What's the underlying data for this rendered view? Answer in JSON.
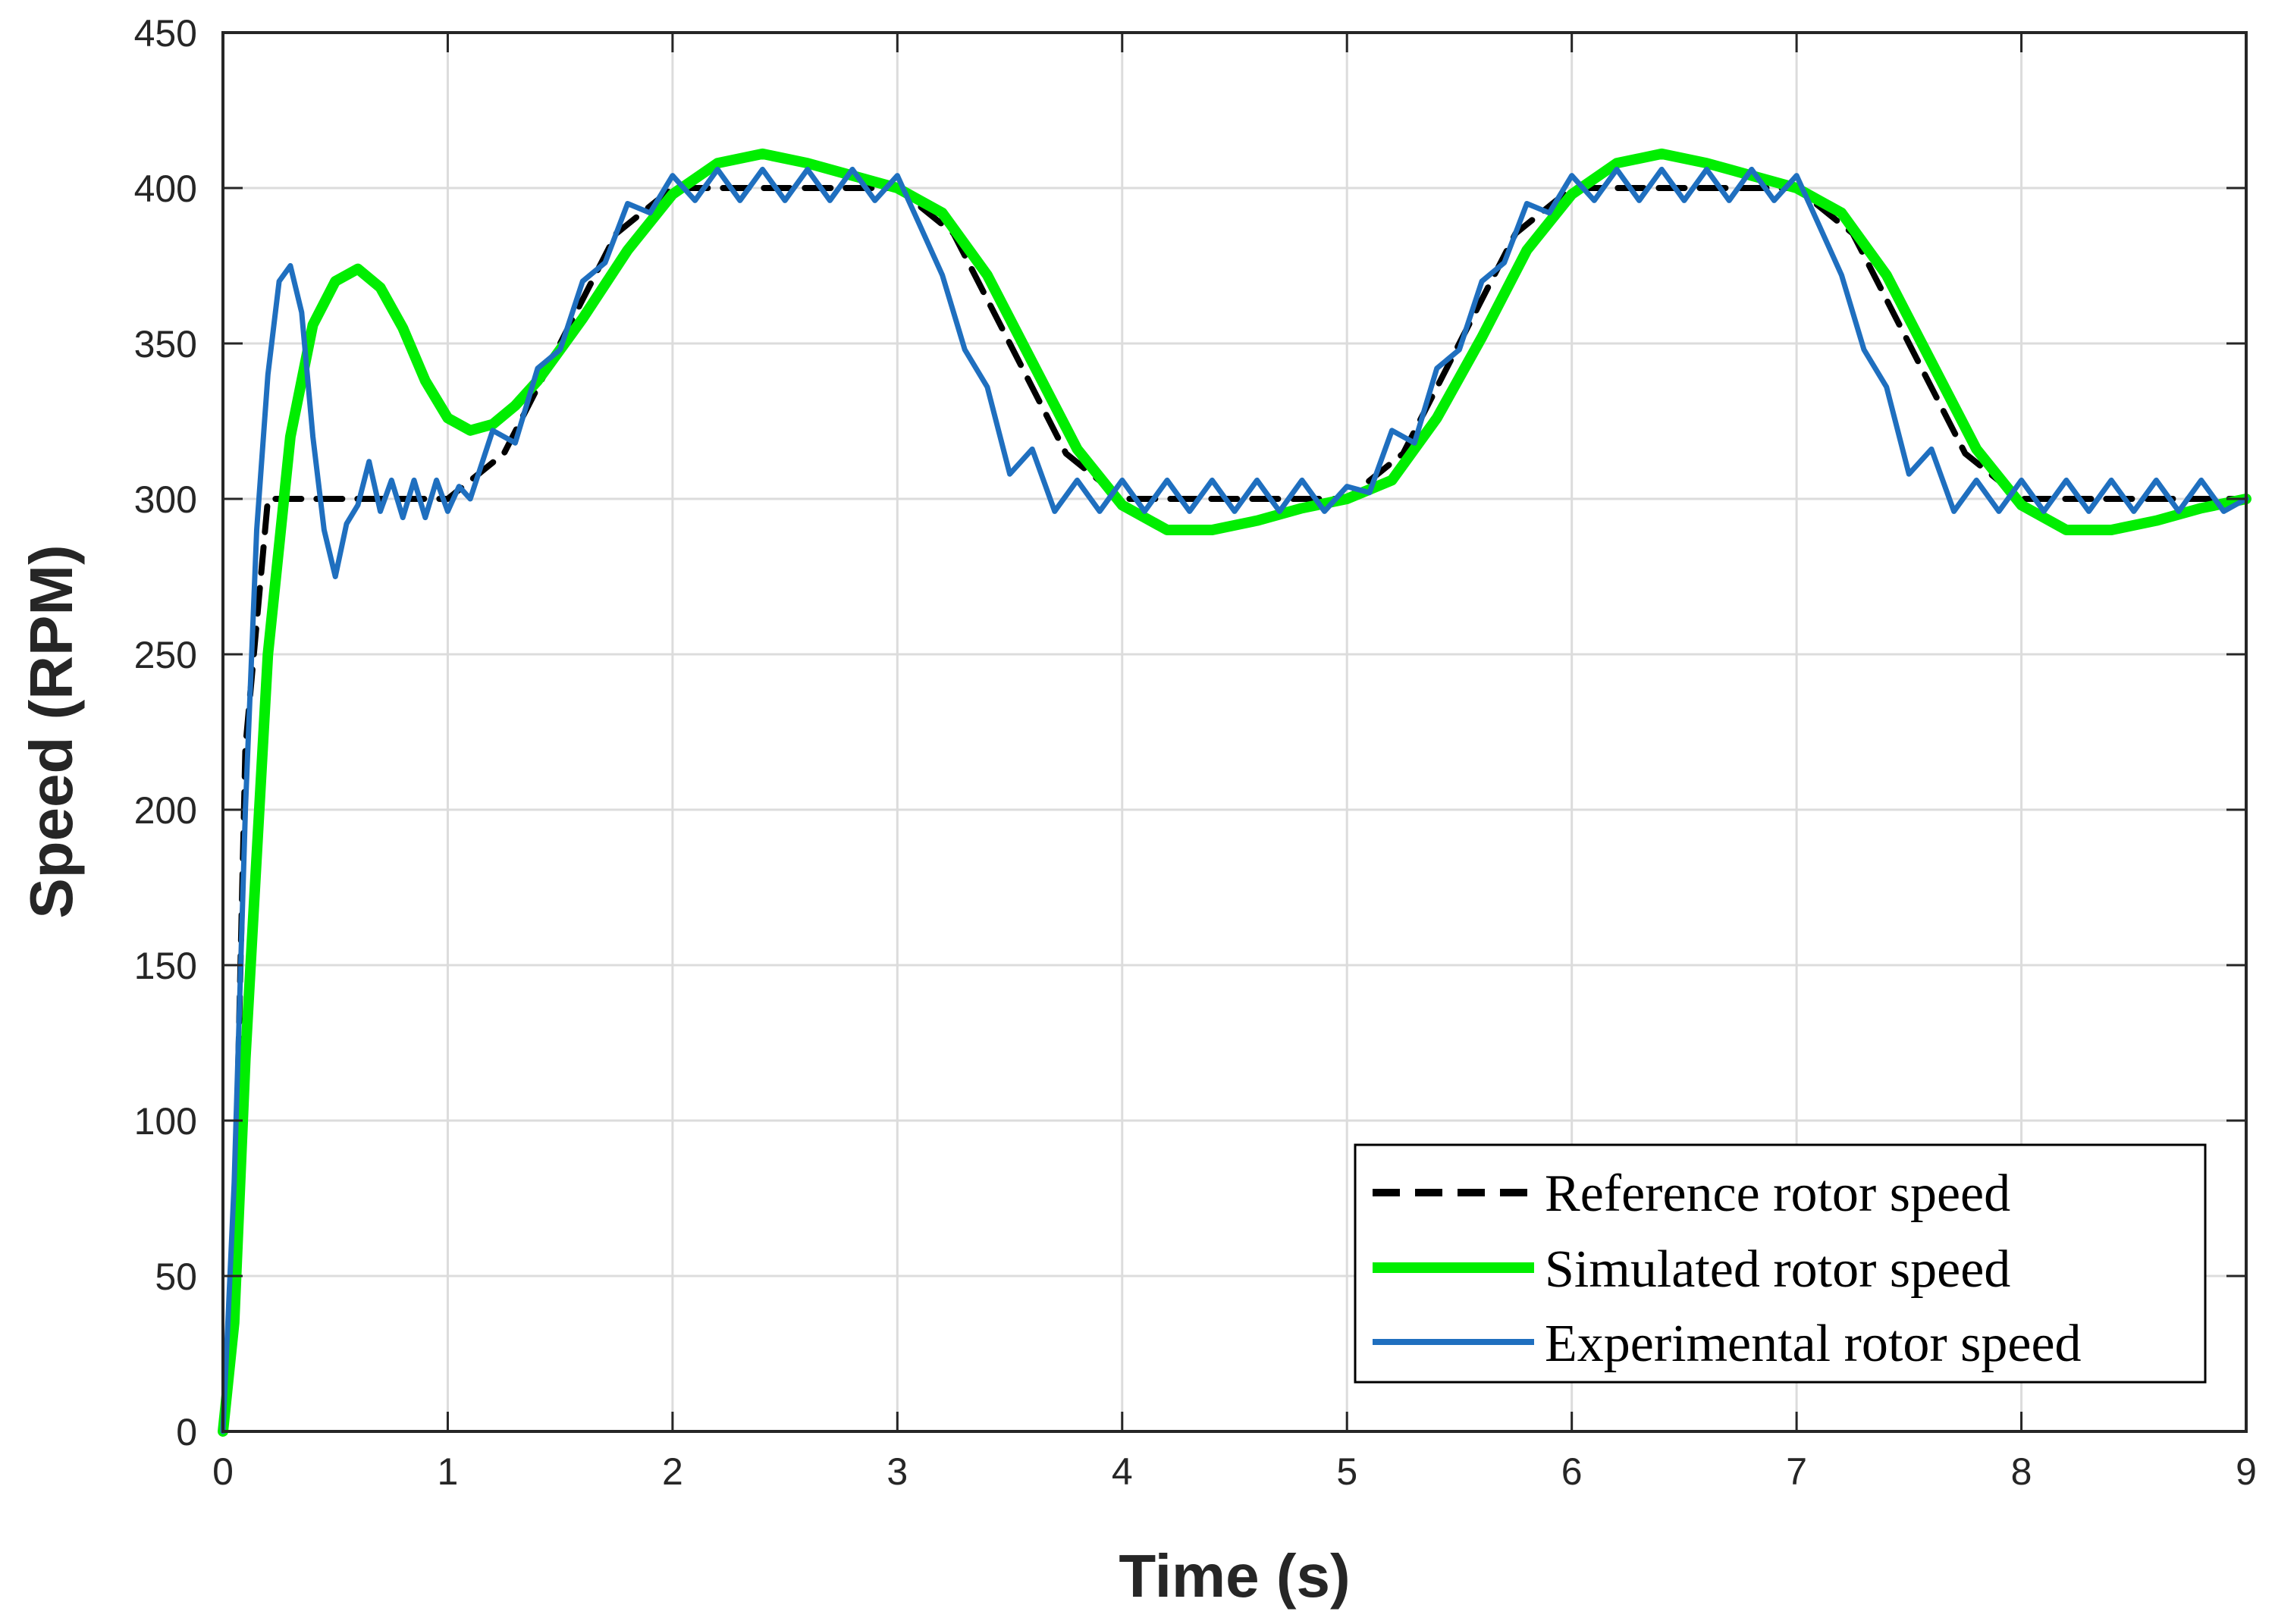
{
  "chart_data": {
    "type": "line",
    "title": "",
    "xlabel": "Time (s)",
    "ylabel": "Speed (RPM)",
    "xlim": [
      0,
      9
    ],
    "ylim": [
      0,
      450
    ],
    "xticks": [
      0,
      1,
      2,
      3,
      4,
      5,
      6,
      7,
      8,
      9
    ],
    "yticks": [
      0,
      50,
      100,
      150,
      200,
      250,
      300,
      350,
      400,
      450
    ],
    "grid": true,
    "legend_position": "bottom-right",
    "series": [
      {
        "name": "Reference rotor speed",
        "color": "#000000",
        "style": "dashed",
        "x": [
          0,
          0.05,
          0.1,
          0.2,
          0.3,
          0.5,
          0.7,
          0.9,
          1,
          1.25,
          1.5,
          1.75,
          2,
          2.5,
          3,
          3.25,
          3.5,
          3.75,
          4,
          4.5,
          5,
          5.25,
          5.5,
          5.75,
          6,
          6.5,
          7,
          7.25,
          7.5,
          7.75,
          8,
          8.5,
          9
        ],
        "values": [
          0,
          60,
          220,
          300,
          300,
          300,
          300,
          300,
          300,
          314.6,
          350,
          385.4,
          400,
          400,
          400,
          385.4,
          350,
          314.6,
          300,
          300,
          300,
          314.6,
          350,
          385.4,
          400,
          400,
          400,
          385.4,
          350,
          314.6,
          300,
          300,
          300
        ]
      },
      {
        "name": "Simulated rotor speed",
        "color": "#00ee00",
        "style": "solid",
        "x": [
          0,
          0.05,
          0.1,
          0.2,
          0.3,
          0.4,
          0.5,
          0.6,
          0.7,
          0.8,
          0.9,
          1.0,
          1.1,
          1.2,
          1.3,
          1.4,
          1.6,
          1.8,
          2.0,
          2.2,
          2.4,
          2.6,
          2.8,
          3.0,
          3.2,
          3.4,
          3.6,
          3.8,
          4.0,
          4.2,
          4.4,
          4.6,
          4.8,
          5.0,
          5.2,
          5.4,
          5.6,
          5.8,
          6.0,
          6.2,
          6.4,
          6.6,
          6.8,
          7.0,
          7.2,
          7.4,
          7.6,
          7.8,
          8.0,
          8.2,
          8.4,
          8.6,
          8.8,
          9.0
        ],
        "values": [
          0,
          35,
          120,
          250,
          320,
          356,
          370,
          374,
          368,
          355,
          338,
          326,
          322,
          324,
          330,
          338,
          358,
          380,
          398,
          408,
          411,
          408,
          404,
          400,
          392,
          372,
          344,
          316,
          298,
          290,
          290,
          293,
          297,
          300,
          306,
          326,
          352,
          380,
          398,
          408,
          411,
          408,
          404,
          400,
          392,
          372,
          344,
          316,
          298,
          290,
          290,
          293,
          297,
          300
        ]
      },
      {
        "name": "Experimental rotor speed",
        "color": "#1f6fbf",
        "style": "solid",
        "x": [
          0,
          0.05,
          0.1,
          0.15,
          0.2,
          0.25,
          0.3,
          0.35,
          0.4,
          0.45,
          0.5,
          0.55,
          0.6,
          0.65,
          0.7,
          0.75,
          0.8,
          0.85,
          0.9,
          0.95,
          1.0,
          1.05,
          1.1,
          1.2,
          1.3,
          1.4,
          1.5,
          1.6,
          1.7,
          1.8,
          1.9,
          2.0,
          2.1,
          2.2,
          2.3,
          2.4,
          2.5,
          2.6,
          2.7,
          2.8,
          2.9,
          3.0,
          3.1,
          3.2,
          3.3,
          3.4,
          3.5,
          3.6,
          3.7,
          3.8,
          3.9,
          4.0,
          4.1,
          4.2,
          4.3,
          4.4,
          4.5,
          4.6,
          4.7,
          4.8,
          4.9,
          5.0,
          5.1,
          5.2,
          5.3,
          5.4,
          5.5,
          5.6,
          5.7,
          5.8,
          5.9,
          6.0,
          6.1,
          6.2,
          6.3,
          6.4,
          6.5,
          6.6,
          6.7,
          6.8,
          6.9,
          7.0,
          7.1,
          7.2,
          7.3,
          7.4,
          7.5,
          7.6,
          7.7,
          7.8,
          7.9,
          8.0,
          8.1,
          8.2,
          8.3,
          8.4,
          8.5,
          8.6,
          8.7,
          8.8,
          8.9,
          9.0
        ],
        "values": [
          0,
          80,
          200,
          290,
          340,
          370,
          375,
          360,
          320,
          290,
          275,
          292,
          298,
          312,
          296,
          306,
          294,
          306,
          294,
          306,
          296,
          304,
          300,
          322,
          318,
          342,
          348,
          370,
          376,
          395,
          392,
          404,
          396,
          406,
          396,
          406,
          396,
          406,
          396,
          406,
          396,
          404,
          388,
          372,
          348,
          336,
          308,
          316,
          296,
          306,
          296,
          306,
          296,
          306,
          296,
          306,
          296,
          306,
          296,
          306,
          296,
          304,
          302,
          322,
          318,
          342,
          348,
          370,
          376,
          395,
          392,
          404,
          396,
          406,
          396,
          406,
          396,
          406,
          396,
          406,
          396,
          404,
          388,
          372,
          348,
          336,
          308,
          316,
          296,
          306,
          296,
          306,
          296,
          306,
          296,
          306,
          296,
          306,
          296,
          306,
          296,
          300
        ]
      }
    ]
  }
}
